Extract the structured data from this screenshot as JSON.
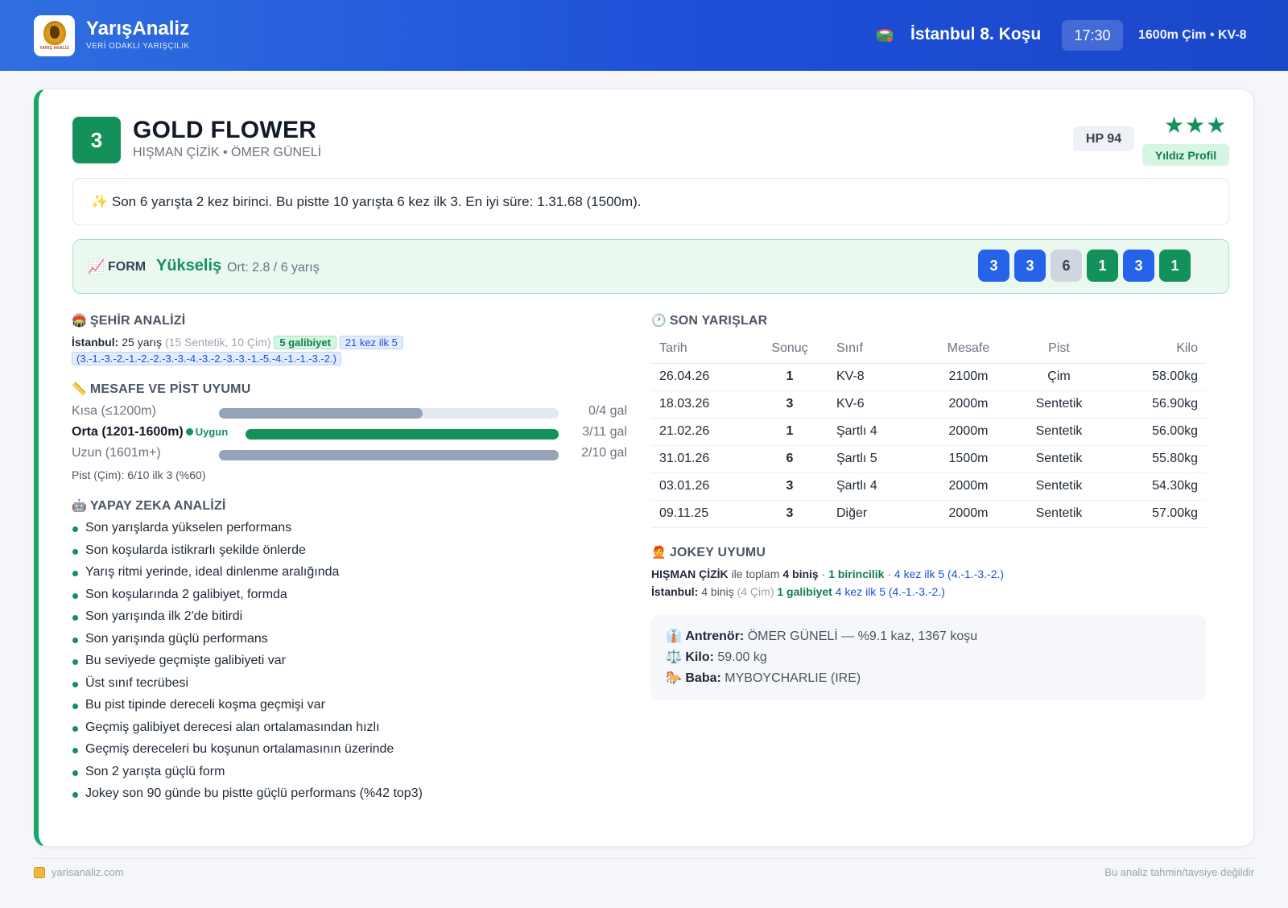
{
  "header": {
    "brand": "YarışAnaliz",
    "brand_sub": "VERİ ODAKLI YARIŞÇILIK",
    "logo_text": "YARIŞ ANALİZ",
    "race_title": "İstanbul 8. Koşu",
    "race_time": "17:30",
    "race_info": "1600m Çim • KV-8"
  },
  "horse": {
    "number": "3",
    "name": "GOLD FLOWER",
    "sub": "HIŞMAN ÇİZİK • ÖMER GÜNELİ",
    "hp": "HP 94",
    "stars": "★★★",
    "star_label": "Yıldız Profil"
  },
  "summary": "✨ Son 6 yarışta 2 kez birinci. Bu pistte 10 yarışta 6 kez ilk 3. En iyi süre: 1.31.68 (1500m).",
  "form": {
    "icon": "📈",
    "label": "FORM",
    "trend": "Yükseliş",
    "avg": "Ort: 2.8 / 6 yarış",
    "chips": [
      {
        "value": "3",
        "color": "blue"
      },
      {
        "value": "3",
        "color": "blue"
      },
      {
        "value": "6",
        "color": "grey"
      },
      {
        "value": "1",
        "color": "green"
      },
      {
        "value": "3",
        "color": "blue"
      },
      {
        "value": "1",
        "color": "green"
      }
    ]
  },
  "city": {
    "title_icon": "🏟️",
    "title": "ŞEHİR ANALİZİ",
    "city": "İstanbul:",
    "races": "25 yarış",
    "detail": "(15 Sentetik, 10 Çim)",
    "wins": "5 galibiyet",
    "top5": "21 kez ilk 5",
    "sequence": "(3.-1.-3.-2.-1.-2.-2.-3.-3.-4.-3.-2.-3.-3.-1.-5.-4.-1.-1.-3.-2.)"
  },
  "distance": {
    "title_icon": "📏",
    "title": "MESAFE VE PİST UYUMU",
    "rows": [
      {
        "label": "Kısa (≤1200m)",
        "value": "0/4 gal",
        "fill": 0.6,
        "active": false,
        "suit": ""
      },
      {
        "label": "Orta (1201-1600m)",
        "value": "3/11 gal",
        "fill": 1.0,
        "active": true,
        "suit": "Uygun"
      },
      {
        "label": "Uzun (1601m+)",
        "value": "2/10 gal",
        "fill": 1.0,
        "active": false,
        "suit": ""
      }
    ],
    "pist": "Pist (Çim): 6/10 ilk 3 (%60)"
  },
  "ai": {
    "title_icon": "🤖",
    "title": "YAPAY ZEKA ANALİZİ",
    "items": [
      "Son yarışlarda yükselen performans",
      "Son koşularda istikrarlı şekilde önlerde",
      "Yarış ritmi yerinde, ideal dinlenme aralığında",
      "Son koşularında 2 galibiyet, formda",
      "Son yarışında ilk 2'de bitirdi",
      "Son yarışında güçlü performans",
      "Bu seviyede geçmişte galibiyeti var",
      "Üst sınıf tecrübesi",
      "Bu pist tipinde dereceli koşma geçmişi var",
      "Geçmiş galibiyet derecesi alan ortalamasından hızlı",
      "Geçmiş dereceleri bu koşunun ortalamasının üzerinde",
      "Son 2 yarışta güçlü form",
      "Jokey son 90 günde bu pistte güçlü performans (%42 top3)"
    ]
  },
  "races": {
    "title_icon": "🕐",
    "title": "SON YARIŞLAR",
    "headers": [
      "Tarih",
      "Sonuç",
      "Sınıf",
      "Mesafe",
      "Pist",
      "Kilo"
    ],
    "rows": [
      [
        "26.04.26",
        "1",
        "KV-8",
        "2100m",
        "Çim",
        "58.00kg"
      ],
      [
        "18.03.26",
        "3",
        "KV-6",
        "2000m",
        "Sentetik",
        "56.90kg"
      ],
      [
        "21.02.26",
        "1",
        "Şartlı 4",
        "2000m",
        "Sentetik",
        "56.00kg"
      ],
      [
        "31.01.26",
        "6",
        "Şartlı 5",
        "1500m",
        "Sentetik",
        "55.80kg"
      ],
      [
        "03.01.26",
        "3",
        "Şartlı 4",
        "2000m",
        "Sentetik",
        "54.30kg"
      ],
      [
        "09.11.25",
        "3",
        "Diğer",
        "2000m",
        "Sentetik",
        "57.00kg"
      ]
    ]
  },
  "jockey": {
    "title_icon": "🧑‍🦰",
    "title": "JOKEY UYUMU",
    "name": "HIŞMAN ÇİZİK",
    "line1_mid": "ile toplam",
    "rides": "4 biniş",
    "wins": "1 birincilik",
    "top5": "4 kez ilk 5 (4.-1.-3.-2.)",
    "city": "İstanbul:",
    "city_rides": "4 biniş",
    "city_detail": "(4 Çim)",
    "city_wins": "1 galibiyet",
    "city_top5": "4 kez ilk 5 (4.-1.-3.-2.)"
  },
  "info": {
    "trainer_icon": "👔",
    "trainer_label": "Antrenör:",
    "trainer_value": "ÖMER GÜNELİ — %9.1 kaz, 1367 koşu",
    "weight_icon": "⚖️",
    "weight_label": "Kilo:",
    "weight_value": "59.00 kg",
    "sire_icon": "🐎",
    "sire_label": "Baba:",
    "sire_value": "MYBOYCHARLIE (IRE)"
  },
  "footer": {
    "site": "yarisanaliz.com",
    "disclaimer": "Bu analiz tahmin/tavsiye değildir"
  }
}
